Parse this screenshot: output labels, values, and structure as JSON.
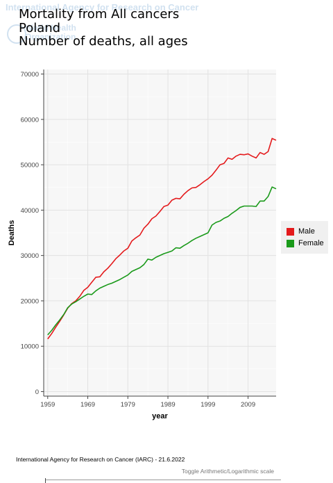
{
  "watermark": {
    "line1": "International Agency for Research on Cancer",
    "line2": "World Health",
    "line3": "Organization"
  },
  "header": {
    "title": "Mortality from All cancers",
    "country": "Poland",
    "subtitle": "Number of deaths, all ages"
  },
  "footer": {
    "source": "International Agency for Research on Cancer (IARC) - 21.6.2022",
    "toggle_label": "Toggle Arithmetic/Logarithmic scale"
  },
  "chart_data": {
    "type": "line",
    "xlabel": "year",
    "ylabel": "Deaths",
    "xlim": [
      1958,
      2016
    ],
    "ylim": [
      -1000,
      71000
    ],
    "xticks": [
      1959,
      1969,
      1979,
      1989,
      1999,
      2009
    ],
    "yticks": [
      0,
      10000,
      20000,
      30000,
      40000,
      50000,
      60000,
      70000
    ],
    "grid": true,
    "legend_position": "right",
    "x": [
      1959,
      1960,
      1961,
      1962,
      1963,
      1964,
      1965,
      1966,
      1967,
      1968,
      1969,
      1970,
      1971,
      1972,
      1973,
      1974,
      1975,
      1976,
      1977,
      1978,
      1979,
      1980,
      1981,
      1982,
      1983,
      1984,
      1985,
      1986,
      1987,
      1988,
      1989,
      1990,
      1991,
      1992,
      1993,
      1994,
      1995,
      1996,
      1997,
      1998,
      1999,
      2000,
      2001,
      2002,
      2003,
      2004,
      2005,
      2006,
      2007,
      2008,
      2009,
      2010,
      2011,
      2012,
      2013,
      2014,
      2015,
      2016
    ],
    "series": [
      {
        "name": "Male",
        "color": "#e41a1c",
        "values": [
          11600,
          12800,
          14200,
          15500,
          16900,
          18400,
          19400,
          20000,
          21000,
          22300,
          23000,
          24100,
          25200,
          25300,
          26400,
          27200,
          28200,
          29300,
          30100,
          31000,
          31600,
          33200,
          33900,
          34500,
          36000,
          36900,
          38100,
          38700,
          39700,
          40800,
          41100,
          42200,
          42600,
          42500,
          43500,
          44300,
          44900,
          45000,
          45600,
          46300,
          46900,
          47700,
          48800,
          50000,
          50300,
          51500,
          51200,
          51900,
          52300,
          52200,
          52400,
          51900,
          51500,
          52700,
          52300,
          52900,
          55800,
          55400
        ],
        "display_name": "Male"
      },
      {
        "name": "Female",
        "color": "#1a9a1a",
        "values": [
          12500,
          13500,
          14700,
          15800,
          17000,
          18500,
          19300,
          19800,
          20400,
          21000,
          21500,
          21400,
          22200,
          22800,
          23200,
          23600,
          23900,
          24300,
          24700,
          25200,
          25700,
          26500,
          26900,
          27300,
          28000,
          29200,
          29000,
          29600,
          30000,
          30400,
          30700,
          31000,
          31700,
          31600,
          32200,
          32700,
          33300,
          33800,
          34200,
          34600,
          35000,
          36700,
          37300,
          37600,
          38200,
          38600,
          39300,
          39900,
          40600,
          40900,
          40900,
          40900,
          40800,
          42000,
          42000,
          43000,
          45100,
          44700
        ],
        "display_name": "Female"
      }
    ]
  }
}
